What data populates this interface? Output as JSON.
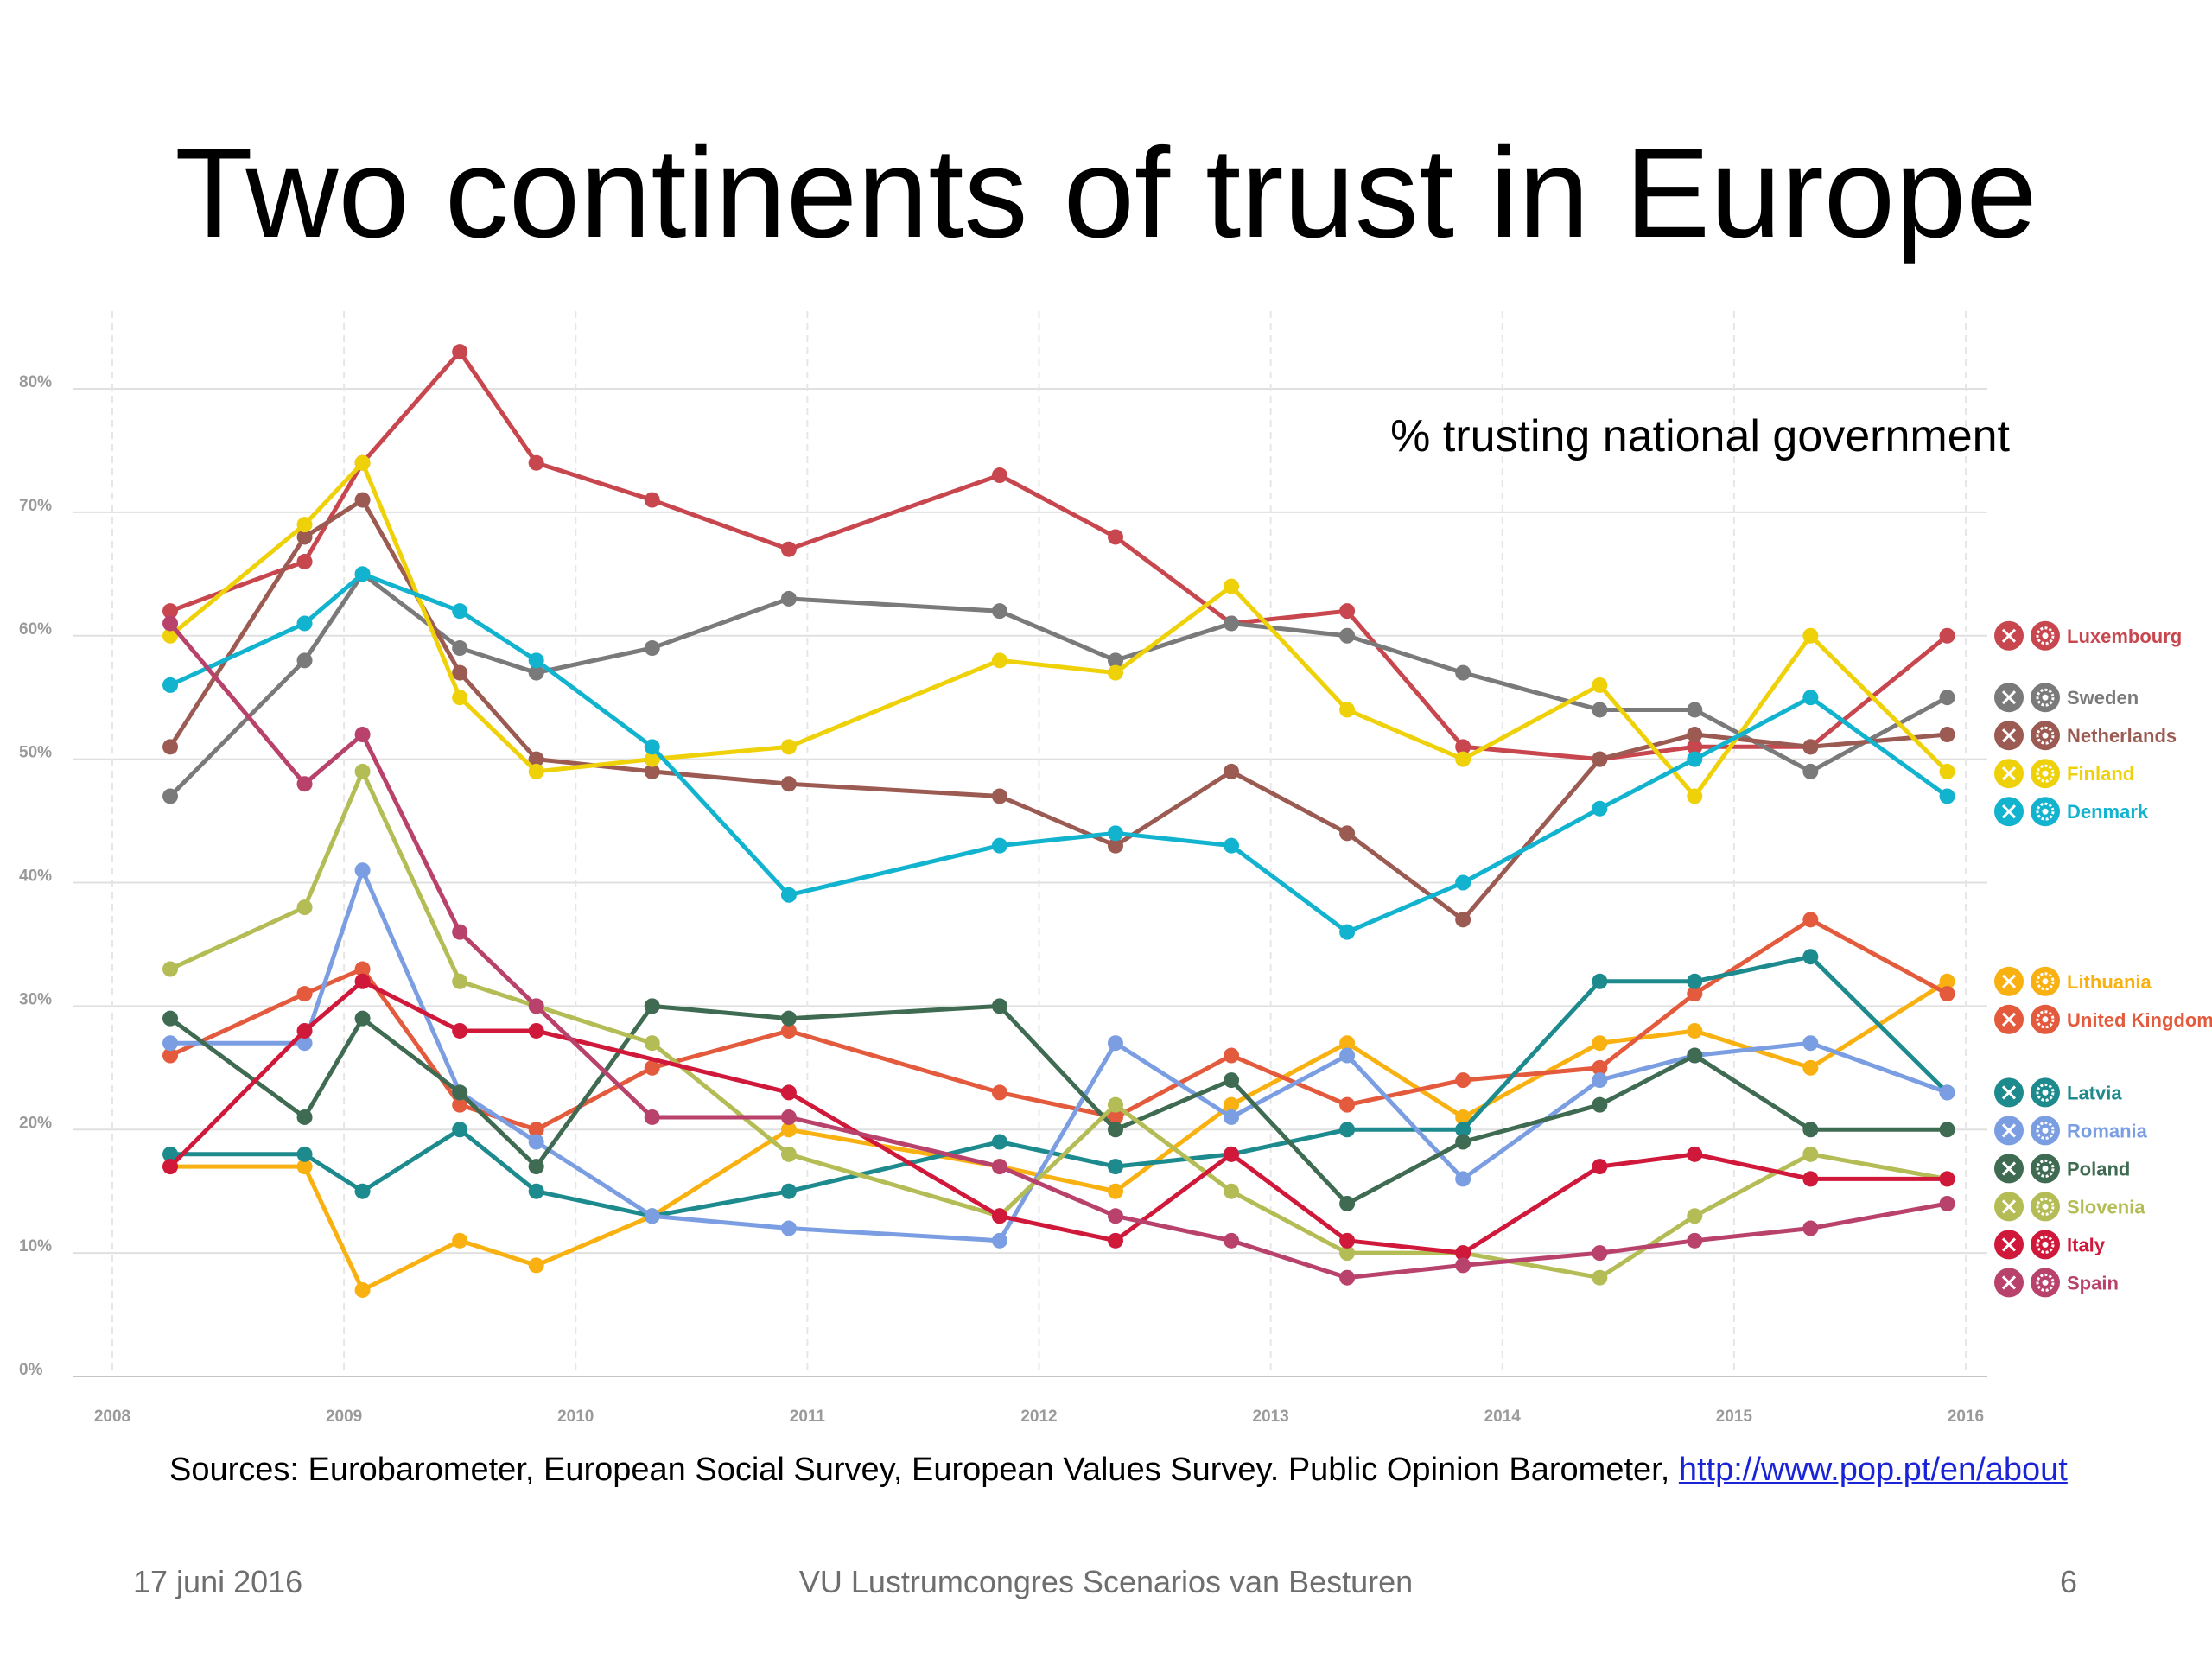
{
  "slide": {
    "title": "Two continents of trust in Europe",
    "sources_text": "Sources: Eurobarometer, European Social Survey, European Values Survey. Public Opinion Barometer, ",
    "sources_link": "http://www.pop.pt/en/about",
    "footer_date": "17 juni 2016",
    "footer_center": "VU Lustrumcongres Scenarios van Besturen",
    "page_number": "6"
  },
  "chart_data": {
    "type": "line",
    "annotation": "% trusting national government",
    "xlim": [
      2008,
      2016
    ],
    "ylim": [
      0,
      80
    ],
    "x_ticks": [
      2008,
      2009,
      2010,
      2011,
      2012,
      2013,
      2014,
      2015,
      2016
    ],
    "y_ticks": [
      0,
      10,
      20,
      30,
      40,
      50,
      60,
      70,
      80
    ],
    "y_tick_labels": [
      "0%",
      "10%",
      "20%",
      "30%",
      "40%",
      "50%",
      "60%",
      "70%",
      "80%"
    ],
    "grid": true,
    "legend_position": "right",
    "legend_icons": [
      "close-icon",
      "gear-icon"
    ],
    "series": [
      {
        "name": "Luxembourg",
        "color": "#c8474f",
        "points": [
          [
            2008.25,
            62
          ],
          [
            2008.83,
            66
          ],
          [
            2009.08,
            74
          ],
          [
            2009.5,
            83
          ],
          [
            2009.83,
            74
          ],
          [
            2010.33,
            71
          ],
          [
            2010.92,
            67
          ],
          [
            2011.83,
            73
          ],
          [
            2012.33,
            68
          ],
          [
            2012.83,
            61
          ],
          [
            2013.33,
            62
          ],
          [
            2013.83,
            51
          ],
          [
            2014.42,
            50
          ],
          [
            2014.83,
            51
          ],
          [
            2015.33,
            51
          ],
          [
            2015.92,
            60
          ]
        ]
      },
      {
        "name": "Sweden",
        "color": "#7a7a7a",
        "points": [
          [
            2008.25,
            47
          ],
          [
            2008.83,
            58
          ],
          [
            2009.08,
            65
          ],
          [
            2009.5,
            59
          ],
          [
            2009.83,
            57
          ],
          [
            2010.33,
            59
          ],
          [
            2010.92,
            63
          ],
          [
            2011.83,
            62
          ],
          [
            2012.33,
            58
          ],
          [
            2012.83,
            61
          ],
          [
            2013.33,
            60
          ],
          [
            2013.83,
            57
          ],
          [
            2014.42,
            54
          ],
          [
            2014.83,
            54
          ],
          [
            2015.33,
            49
          ],
          [
            2015.92,
            55
          ]
        ]
      },
      {
        "name": "Netherlands",
        "color": "#9b5b52",
        "points": [
          [
            2008.25,
            51
          ],
          [
            2008.83,
            68
          ],
          [
            2009.08,
            71
          ],
          [
            2009.5,
            57
          ],
          [
            2009.83,
            50
          ],
          [
            2010.33,
            49
          ],
          [
            2010.92,
            48
          ],
          [
            2011.83,
            47
          ],
          [
            2012.33,
            43
          ],
          [
            2012.83,
            49
          ],
          [
            2013.33,
            44
          ],
          [
            2013.83,
            37
          ],
          [
            2014.42,
            50
          ],
          [
            2014.83,
            52
          ],
          [
            2015.33,
            51
          ],
          [
            2015.92,
            52
          ]
        ]
      },
      {
        "name": "Finland",
        "color": "#efd10a",
        "points": [
          [
            2008.25,
            60
          ],
          [
            2008.83,
            69
          ],
          [
            2009.08,
            74
          ],
          [
            2009.5,
            55
          ],
          [
            2009.83,
            49
          ],
          [
            2010.33,
            50
          ],
          [
            2010.92,
            51
          ],
          [
            2011.83,
            58
          ],
          [
            2012.33,
            57
          ],
          [
            2012.83,
            64
          ],
          [
            2013.33,
            54
          ],
          [
            2013.83,
            50
          ],
          [
            2014.42,
            56
          ],
          [
            2014.83,
            47
          ],
          [
            2015.33,
            60
          ],
          [
            2015.92,
            49
          ]
        ]
      },
      {
        "name": "Denmark",
        "color": "#12b3cf",
        "points": [
          [
            2008.25,
            56
          ],
          [
            2008.83,
            61
          ],
          [
            2009.08,
            65
          ],
          [
            2009.5,
            62
          ],
          [
            2009.83,
            58
          ],
          [
            2010.33,
            51
          ],
          [
            2010.92,
            39
          ],
          [
            2011.83,
            43
          ],
          [
            2012.33,
            44
          ],
          [
            2012.83,
            43
          ],
          [
            2013.33,
            36
          ],
          [
            2013.83,
            40
          ],
          [
            2014.42,
            46
          ],
          [
            2014.83,
            50
          ],
          [
            2015.33,
            55
          ],
          [
            2015.92,
            47
          ]
        ]
      },
      {
        "name": "Lithuania",
        "color": "#f9b112",
        "points": [
          [
            2008.25,
            17
          ],
          [
            2008.83,
            17
          ],
          [
            2009.08,
            7
          ],
          [
            2009.5,
            11
          ],
          [
            2009.83,
            9
          ],
          [
            2010.33,
            13
          ],
          [
            2010.92,
            20
          ],
          [
            2011.83,
            17
          ],
          [
            2012.33,
            15
          ],
          [
            2012.83,
            22
          ],
          [
            2013.33,
            27
          ],
          [
            2013.83,
            21
          ],
          [
            2014.42,
            27
          ],
          [
            2014.83,
            28
          ],
          [
            2015.33,
            25
          ],
          [
            2015.92,
            32
          ]
        ]
      },
      {
        "name": "United Kingdom",
        "color": "#e35a3d",
        "points": [
          [
            2008.25,
            26
          ],
          [
            2008.83,
            31
          ],
          [
            2009.08,
            33
          ],
          [
            2009.5,
            22
          ],
          [
            2009.83,
            20
          ],
          [
            2010.33,
            25
          ],
          [
            2010.92,
            28
          ],
          [
            2011.83,
            23
          ],
          [
            2012.33,
            21
          ],
          [
            2012.83,
            26
          ],
          [
            2013.33,
            22
          ],
          [
            2013.83,
            24
          ],
          [
            2014.42,
            25
          ],
          [
            2014.83,
            31
          ],
          [
            2015.33,
            37
          ],
          [
            2015.92,
            31
          ]
        ]
      },
      {
        "name": "Latvia",
        "color": "#1d8a8e",
        "points": [
          [
            2008.25,
            18
          ],
          [
            2008.83,
            18
          ],
          [
            2009.08,
            15
          ],
          [
            2009.5,
            20
          ],
          [
            2009.83,
            15
          ],
          [
            2010.33,
            13
          ],
          [
            2010.92,
            15
          ],
          [
            2011.83,
            19
          ],
          [
            2012.33,
            17
          ],
          [
            2012.83,
            18
          ],
          [
            2013.33,
            20
          ],
          [
            2013.83,
            20
          ],
          [
            2014.42,
            32
          ],
          [
            2014.83,
            32
          ],
          [
            2015.33,
            34
          ],
          [
            2015.92,
            23
          ]
        ]
      },
      {
        "name": "Romania",
        "color": "#7b9ee2",
        "points": [
          [
            2008.25,
            27
          ],
          [
            2008.83,
            27
          ],
          [
            2009.08,
            41
          ],
          [
            2009.5,
            23
          ],
          [
            2009.83,
            19
          ],
          [
            2010.33,
            13
          ],
          [
            2010.92,
            12
          ],
          [
            2011.83,
            11
          ],
          [
            2012.33,
            27
          ],
          [
            2012.83,
            21
          ],
          [
            2013.33,
            26
          ],
          [
            2013.83,
            16
          ],
          [
            2014.42,
            24
          ],
          [
            2014.83,
            26
          ],
          [
            2015.33,
            27
          ],
          [
            2015.92,
            23
          ]
        ]
      },
      {
        "name": "Poland",
        "color": "#3f6b52",
        "points": [
          [
            2008.25,
            29
          ],
          [
            2008.83,
            21
          ],
          [
            2009.08,
            29
          ],
          [
            2009.5,
            23
          ],
          [
            2009.83,
            17
          ],
          [
            2010.33,
            30
          ],
          [
            2010.92,
            29
          ],
          [
            2011.83,
            30
          ],
          [
            2012.33,
            20
          ],
          [
            2012.83,
            24
          ],
          [
            2013.33,
            14
          ],
          [
            2013.83,
            19
          ],
          [
            2014.42,
            22
          ],
          [
            2014.83,
            26
          ],
          [
            2015.33,
            20
          ],
          [
            2015.92,
            20
          ]
        ]
      },
      {
        "name": "Slovenia",
        "color": "#b4bc55",
        "points": [
          [
            2008.25,
            33
          ],
          [
            2008.83,
            38
          ],
          [
            2009.08,
            49
          ],
          [
            2009.5,
            32
          ],
          [
            2009.83,
            30
          ],
          [
            2010.33,
            27
          ],
          [
            2010.92,
            18
          ],
          [
            2011.83,
            13
          ],
          [
            2012.33,
            22
          ],
          [
            2012.83,
            15
          ],
          [
            2013.33,
            10
          ],
          [
            2013.83,
            10
          ],
          [
            2014.42,
            8
          ],
          [
            2014.83,
            13
          ],
          [
            2015.33,
            18
          ],
          [
            2015.92,
            16
          ]
        ]
      },
      {
        "name": "Italy",
        "color": "#d0183a",
        "points": [
          [
            2008.25,
            17
          ],
          [
            2008.83,
            28
          ],
          [
            2009.08,
            32
          ],
          [
            2009.5,
            28
          ],
          [
            2009.83,
            28
          ],
          [
            2010.92,
            23
          ],
          [
            2011.83,
            13
          ],
          [
            2012.33,
            11
          ],
          [
            2012.83,
            18
          ],
          [
            2013.33,
            11
          ],
          [
            2013.83,
            10
          ],
          [
            2014.42,
            17
          ],
          [
            2014.83,
            18
          ],
          [
            2015.33,
            16
          ],
          [
            2015.92,
            16
          ]
        ]
      },
      {
        "name": "Spain",
        "color": "#b8426b",
        "points": [
          [
            2008.25,
            61
          ],
          [
            2008.83,
            48
          ],
          [
            2009.08,
            52
          ],
          [
            2009.5,
            36
          ],
          [
            2009.83,
            30
          ],
          [
            2010.33,
            21
          ],
          [
            2010.92,
            21
          ],
          [
            2011.83,
            17
          ],
          [
            2012.33,
            13
          ],
          [
            2012.83,
            11
          ],
          [
            2013.33,
            8
          ],
          [
            2013.83,
            9
          ],
          [
            2014.42,
            10
          ],
          [
            2014.83,
            11
          ],
          [
            2015.33,
            12
          ],
          [
            2015.92,
            14
          ]
        ]
      }
    ]
  }
}
